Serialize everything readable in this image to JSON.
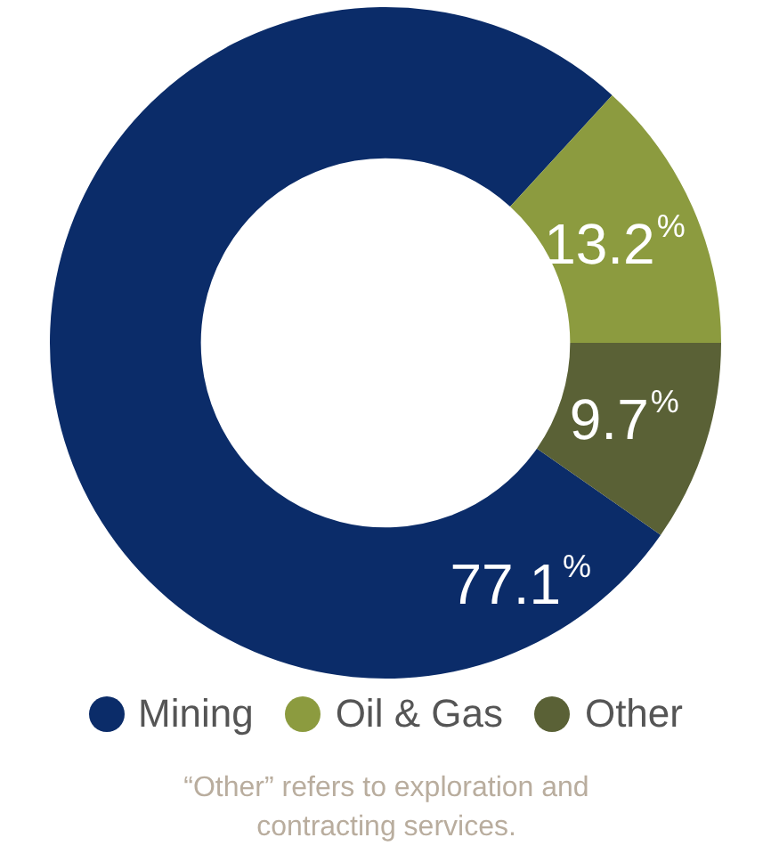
{
  "chart_data": {
    "type": "donut",
    "categories": [
      "Mining",
      "Oil & Gas",
      "Other"
    ],
    "values": [
      77.1,
      13.2,
      9.7
    ],
    "colors": [
      "#0b2c69",
      "#8c9b3f",
      "#5a6136"
    ],
    "value_labels": [
      "77.1%",
      "13.2%",
      "9.7%"
    ],
    "legend": "bottom",
    "annotations": [
      "“Other” refers to exploration and contracting services."
    ]
  }
}
